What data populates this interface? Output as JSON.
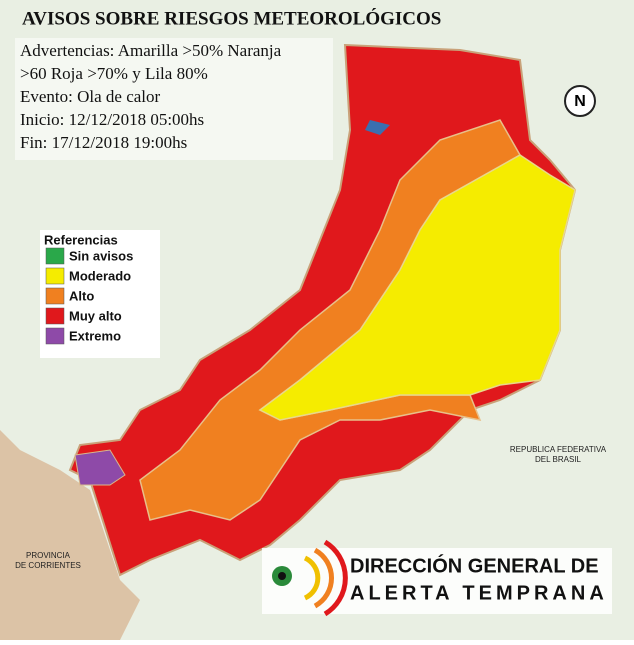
{
  "header": {
    "title": "AVISOS SOBRE RIESGOS METEOROLÓGICOS"
  },
  "info": {
    "lines": [
      "Advertencias: Amarilla >50% Naranja",
      ">60 Roja >70% y Lila 80%",
      "Evento: Ola de calor",
      "Inicio: 12/12/2018 05:00hs",
      "Fin: 17/12/2018 19:00hs"
    ]
  },
  "legend": {
    "title": "Referencias",
    "items": [
      {
        "label": "Sin avisos",
        "color": "#2aa84a"
      },
      {
        "label": "Moderado",
        "color": "#f5ec00"
      },
      {
        "label": "Alto",
        "color": "#f08020"
      },
      {
        "label": "Muy alto",
        "color": "#e0181c"
      },
      {
        "label": "Extremo",
        "color": "#8e4aa8"
      }
    ]
  },
  "map_labels": {
    "brasil": [
      "REPUBLICA FEDERATIVA",
      "DEL BRASIL"
    ],
    "corrientes": [
      "PROVINCIA",
      "DE CORRIENTES"
    ],
    "north": "N"
  },
  "logo": {
    "line1": "DIRECCIÓN GENERAL DE",
    "line2": "ALERTA TEMPRANA"
  }
}
